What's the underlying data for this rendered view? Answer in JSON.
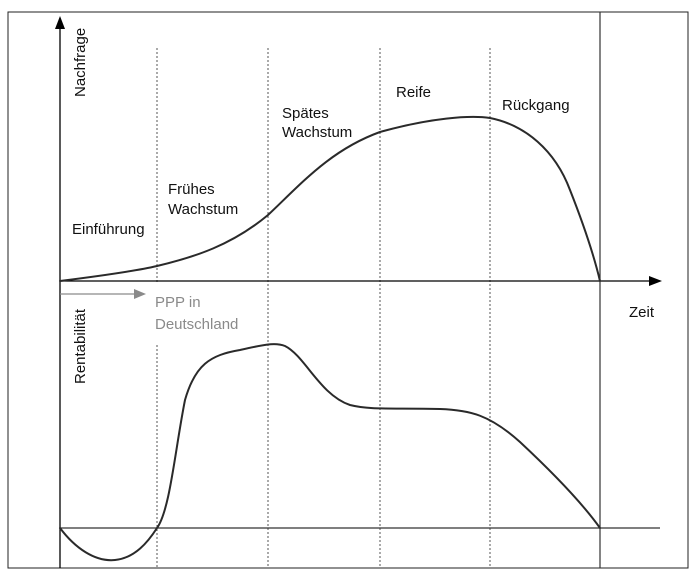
{
  "axes": {
    "demand_label": "Nachfrage",
    "profitability_label": "Rentabilität",
    "time_label": "Zeit"
  },
  "phases": {
    "introduction": "Einführung",
    "early_growth_line1": "Frühes",
    "early_growth_line2": "Wachstum",
    "late_growth_line1": "Spätes",
    "late_growth_line2": "Wachstum",
    "maturity": "Reife",
    "decline": "Rückgang"
  },
  "ppp": {
    "line1": "PPP in",
    "line2": "Deutschland",
    "color": "#8a8a8a"
  }
}
